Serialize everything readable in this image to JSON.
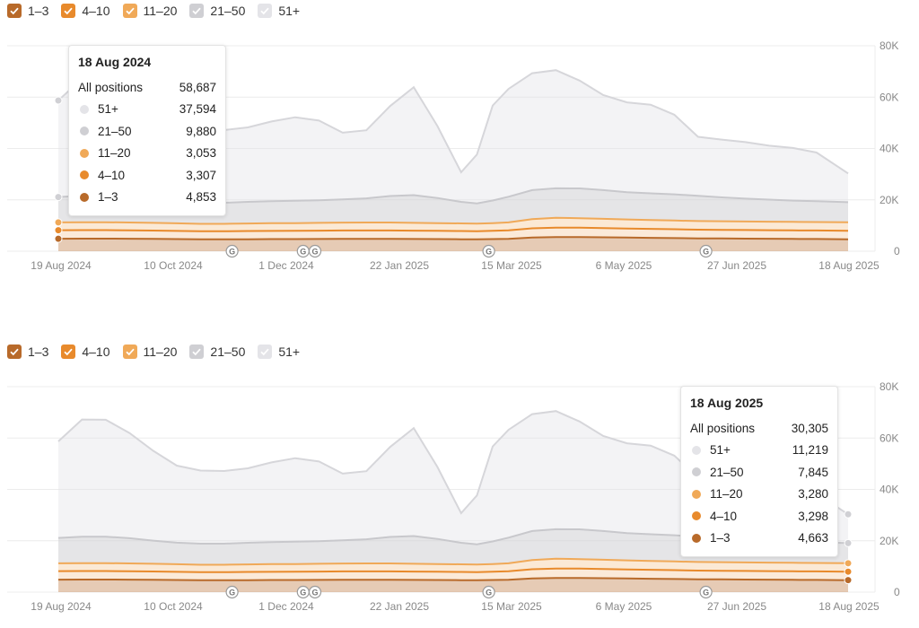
{
  "legend": [
    {
      "label": "1–3",
      "color": "#b86a2a"
    },
    {
      "label": "4–10",
      "color": "#e88a2c"
    },
    {
      "label": "11–20",
      "color": "#f0a958"
    },
    {
      "label": "21–50",
      "color": "#cfcfd3"
    },
    {
      "label": "51+",
      "color": "#e4e4e8"
    }
  ],
  "colors": {
    "p1_3": "#b86a2a",
    "p4_10": "#e88a2c",
    "p11_20": "#f0a958",
    "p21_50": "#cfcfd3",
    "p51": "#e4e4e8",
    "grid": "#ececec"
  },
  "icons": [
    "google-update-marker-icon",
    "checkbox-check-icon"
  ],
  "tooltips": [
    {
      "date": "18 Aug 2024",
      "all_label": "All positions",
      "all_value": "58,687",
      "rows": [
        {
          "label": "51+",
          "value": "37,594",
          "color": "#e4e4e8"
        },
        {
          "label": "21–50",
          "value": "9,880",
          "color": "#cfcfd3"
        },
        {
          "label": "11–20",
          "value": "3,053",
          "color": "#f0a958"
        },
        {
          "label": "4–10",
          "value": "3,307",
          "color": "#e88a2c"
        },
        {
          "label": "1–3",
          "value": "4,853",
          "color": "#b86a2a"
        }
      ]
    },
    {
      "date": "18 Aug 2025",
      "all_label": "All positions",
      "all_value": "30,305",
      "rows": [
        {
          "label": "51+",
          "value": "11,219",
          "color": "#e4e4e8"
        },
        {
          "label": "21–50",
          "value": "7,845",
          "color": "#cfcfd3"
        },
        {
          "label": "11–20",
          "value": "3,280",
          "color": "#f0a958"
        },
        {
          "label": "4–10",
          "value": "3,298",
          "color": "#e88a2c"
        },
        {
          "label": "1–3",
          "value": "4,663",
          "color": "#b86a2a"
        }
      ]
    }
  ],
  "chart_data": [
    {
      "type": "area",
      "stacked": true,
      "x_ticks": [
        "19 Aug 2024",
        "10 Oct 2024",
        "1 Dec 2024",
        "22 Jan 2025",
        "15 Mar 2025",
        "6 May 2025",
        "27 Jun 2025",
        "18 Aug 2025"
      ],
      "y_ticks": [
        "0",
        "20K",
        "40K",
        "60K",
        "80K"
      ],
      "ylim": [
        0,
        80000
      ],
      "grid": true,
      "google_update_markers_at": [
        0.22,
        0.31,
        0.325,
        0.545,
        0.82
      ],
      "x_positions": [
        0.0,
        0.03,
        0.06,
        0.09,
        0.12,
        0.15,
        0.18,
        0.21,
        0.24,
        0.27,
        0.3,
        0.33,
        0.36,
        0.39,
        0.42,
        0.45,
        0.48,
        0.51,
        0.53,
        0.55,
        0.57,
        0.6,
        0.63,
        0.66,
        0.69,
        0.72,
        0.75,
        0.78,
        0.81,
        0.84,
        0.87,
        0.9,
        0.93,
        0.96,
        1.0
      ],
      "series": [
        {
          "name": "1–3",
          "values": [
            4853,
            4900,
            4900,
            4850,
            4800,
            4700,
            4600,
            4600,
            4650,
            4700,
            4700,
            4750,
            4800,
            4800,
            4800,
            4750,
            4700,
            4650,
            4600,
            4700,
            4800,
            5300,
            5500,
            5500,
            5400,
            5300,
            5200,
            5100,
            5000,
            4950,
            4900,
            4850,
            4800,
            4750,
            4663
          ]
        },
        {
          "name": "4–10",
          "values": [
            3307,
            3300,
            3300,
            3280,
            3250,
            3200,
            3150,
            3150,
            3200,
            3200,
            3220,
            3250,
            3280,
            3280,
            3280,
            3250,
            3220,
            3200,
            3180,
            3230,
            3300,
            3600,
            3700,
            3650,
            3600,
            3550,
            3500,
            3450,
            3400,
            3380,
            3350,
            3330,
            3320,
            3310,
            3298
          ]
        },
        {
          "name": "11–20",
          "values": [
            3053,
            3100,
            3100,
            3050,
            3000,
            2950,
            2900,
            2900,
            2950,
            3000,
            3020,
            3050,
            3080,
            3100,
            3100,
            3050,
            3000,
            2980,
            2950,
            3000,
            3100,
            3600,
            3800,
            3700,
            3600,
            3500,
            3450,
            3400,
            3350,
            3330,
            3320,
            3300,
            3290,
            3285,
            3280
          ]
        },
        {
          "name": "21–50",
          "values": [
            9880,
            10300,
            10300,
            9800,
            9000,
            8400,
            8200,
            8200,
            8400,
            8600,
            8700,
            8800,
            9000,
            9400,
            10300,
            10800,
            9800,
            8400,
            7900,
            8800,
            10000,
            11300,
            11500,
            11600,
            11200,
            10600,
            10400,
            10200,
            9800,
            9300,
            8900,
            8600,
            8300,
            8100,
            7845
          ]
        },
        {
          "name": "51+",
          "values": [
            37594,
            45600,
            45500,
            41000,
            35000,
            30000,
            28500,
            28300,
            29000,
            31000,
            32500,
            31000,
            26000,
            26500,
            35000,
            42000,
            28000,
            11500,
            19000,
            37000,
            42000,
            45500,
            46000,
            42000,
            37000,
            35000,
            34500,
            31000,
            23000,
            22500,
            22000,
            21000,
            20500,
            19000,
            11219
          ]
        }
      ]
    }
  ]
}
